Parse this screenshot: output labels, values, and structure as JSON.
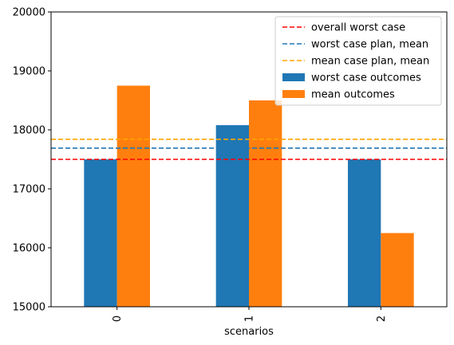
{
  "chart_data": {
    "type": "bar",
    "categories": [
      "0",
      "1",
      "2"
    ],
    "series": [
      {
        "name": "worst case outcomes",
        "values": [
          17500,
          18080,
          17500
        ],
        "color": "#1f77b4"
      },
      {
        "name": "mean outcomes",
        "values": [
          18750,
          18500,
          16250
        ],
        "color": "#ff7f0e"
      }
    ],
    "reference_lines": [
      {
        "name": "overall worst case",
        "value": 17500,
        "color": "#ff0000",
        "style": "dashed"
      },
      {
        "name": "worst case plan, mean",
        "value": 17690,
        "color": "#1f77b4",
        "style": "dashed"
      },
      {
        "name": "mean case plan, mean",
        "value": 17840,
        "color": "#ffa500",
        "style": "dashed"
      }
    ],
    "xlabel": "scenarios",
    "ylabel": "",
    "ylim": [
      15000,
      20000
    ],
    "yticks": [
      15000,
      16000,
      17000,
      18000,
      19000,
      20000
    ],
    "xtick_rotation": "vertical",
    "grid": false,
    "legend_position": "top-right"
  }
}
